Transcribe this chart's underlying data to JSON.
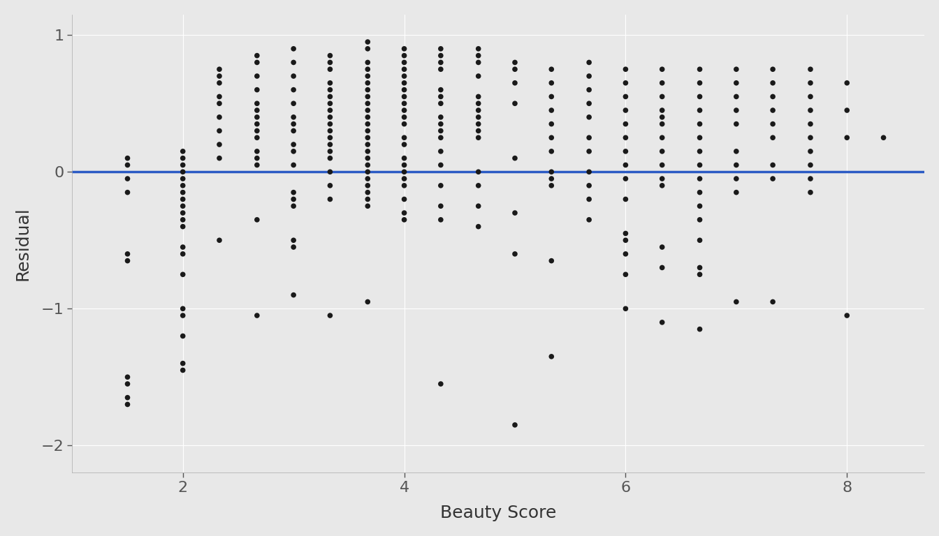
{
  "x": [
    1.5,
    1.5,
    1.5,
    1.5,
    1.5,
    1.5,
    1.5,
    1.5,
    1.5,
    1.5,
    2.0,
    2.0,
    2.0,
    2.0,
    2.0,
    2.0,
    2.0,
    2.0,
    2.0,
    2.0,
    2.0,
    2.0,
    2.0,
    2.0,
    2.0,
    2.0,
    2.0,
    2.0,
    2.0,
    2.0,
    2.33,
    2.33,
    2.33,
    2.33,
    2.33,
    2.33,
    2.33,
    2.33,
    2.33,
    2.33,
    2.67,
    2.67,
    2.67,
    2.67,
    2.67,
    2.67,
    2.67,
    2.67,
    2.67,
    2.67,
    2.67,
    2.67,
    2.67,
    2.67,
    2.67,
    3.0,
    3.0,
    3.0,
    3.0,
    3.0,
    3.0,
    3.0,
    3.0,
    3.0,
    3.0,
    3.0,
    3.0,
    3.0,
    3.0,
    3.0,
    3.0,
    3.0,
    3.33,
    3.33,
    3.33,
    3.33,
    3.33,
    3.33,
    3.33,
    3.33,
    3.33,
    3.33,
    3.33,
    3.33,
    3.33,
    3.33,
    3.33,
    3.33,
    3.33,
    3.33,
    3.33,
    3.67,
    3.67,
    3.67,
    3.67,
    3.67,
    3.67,
    3.67,
    3.67,
    3.67,
    3.67,
    3.67,
    3.67,
    3.67,
    3.67,
    3.67,
    3.67,
    3.67,
    3.67,
    3.67,
    3.67,
    3.67,
    3.67,
    3.67,
    3.67,
    3.67,
    4.0,
    4.0,
    4.0,
    4.0,
    4.0,
    4.0,
    4.0,
    4.0,
    4.0,
    4.0,
    4.0,
    4.0,
    4.0,
    4.0,
    4.0,
    4.0,
    4.0,
    4.0,
    4.0,
    4.0,
    4.0,
    4.0,
    4.33,
    4.33,
    4.33,
    4.33,
    4.33,
    4.33,
    4.33,
    4.33,
    4.33,
    4.33,
    4.33,
    4.33,
    4.33,
    4.33,
    4.33,
    4.33,
    4.33,
    4.67,
    4.67,
    4.67,
    4.67,
    4.67,
    4.67,
    4.67,
    4.67,
    4.67,
    4.67,
    4.67,
    4.67,
    4.67,
    4.67,
    4.67,
    5.0,
    5.0,
    5.0,
    5.0,
    5.0,
    5.0,
    5.0,
    5.0,
    5.33,
    5.33,
    5.33,
    5.33,
    5.33,
    5.33,
    5.33,
    5.33,
    5.33,
    5.33,
    5.33,
    5.33,
    5.67,
    5.67,
    5.67,
    5.67,
    5.67,
    5.67,
    5.67,
    5.67,
    5.67,
    5.67,
    5.67,
    6.0,
    6.0,
    6.0,
    6.0,
    6.0,
    6.0,
    6.0,
    6.0,
    6.0,
    6.0,
    6.0,
    6.0,
    6.0,
    6.0,
    6.0,
    6.33,
    6.33,
    6.33,
    6.33,
    6.33,
    6.33,
    6.33,
    6.33,
    6.33,
    6.33,
    6.33,
    6.33,
    6.33,
    6.33,
    6.67,
    6.67,
    6.67,
    6.67,
    6.67,
    6.67,
    6.67,
    6.67,
    6.67,
    6.67,
    6.67,
    6.67,
    6.67,
    6.67,
    6.67,
    6.67,
    7.0,
    7.0,
    7.0,
    7.0,
    7.0,
    7.0,
    7.0,
    7.0,
    7.0,
    7.0,
    7.33,
    7.33,
    7.33,
    7.33,
    7.33,
    7.33,
    7.33,
    7.33,
    7.33,
    7.67,
    7.67,
    7.67,
    7.67,
    7.67,
    7.67,
    7.67,
    7.67,
    7.67,
    7.67,
    8.0,
    8.0,
    8.0,
    8.0,
    8.33
  ],
  "y": [
    0.1,
    0.05,
    -0.05,
    -0.15,
    -0.6,
    -0.65,
    -1.5,
    -1.55,
    -1.65,
    -1.7,
    0.15,
    0.1,
    0.05,
    0.0,
    -0.05,
    -0.1,
    -0.15,
    -0.2,
    -0.25,
    -0.3,
    -0.35,
    -0.4,
    -0.55,
    -0.6,
    -0.75,
    -1.0,
    -1.05,
    -1.2,
    -1.4,
    -1.45,
    0.75,
    0.7,
    0.65,
    0.55,
    0.5,
    0.4,
    0.3,
    0.2,
    0.1,
    -0.5,
    0.85,
    0.8,
    0.7,
    0.6,
    0.5,
    0.45,
    0.4,
    0.35,
    0.3,
    0.25,
    0.15,
    0.1,
    0.05,
    -0.35,
    -1.05,
    0.9,
    0.8,
    0.7,
    0.6,
    0.5,
    0.4,
    0.35,
    0.3,
    0.2,
    0.15,
    0.05,
    -0.15,
    -0.2,
    -0.25,
    -0.5,
    -0.55,
    -0.9,
    0.85,
    0.8,
    0.75,
    0.65,
    0.6,
    0.55,
    0.5,
    0.45,
    0.4,
    0.35,
    0.3,
    0.25,
    0.2,
    0.15,
    0.1,
    0.0,
    -0.1,
    -0.2,
    -1.05,
    0.95,
    0.9,
    0.8,
    0.75,
    0.7,
    0.65,
    0.6,
    0.55,
    0.5,
    0.45,
    0.4,
    0.35,
    0.3,
    0.25,
    0.2,
    0.15,
    0.1,
    0.05,
    0.0,
    -0.05,
    -0.1,
    -0.15,
    -0.2,
    -0.25,
    -0.95,
    0.9,
    0.85,
    0.8,
    0.75,
    0.7,
    0.65,
    0.6,
    0.55,
    0.5,
    0.45,
    0.4,
    0.35,
    0.25,
    0.2,
    0.1,
    0.05,
    0.0,
    -0.05,
    -0.1,
    -0.2,
    -0.3,
    -0.35,
    0.9,
    0.85,
    0.8,
    0.75,
    0.6,
    0.55,
    0.5,
    0.4,
    0.35,
    0.3,
    0.25,
    0.15,
    0.05,
    -0.1,
    -0.25,
    -0.35,
    -1.55,
    0.9,
    0.85,
    0.8,
    0.7,
    0.55,
    0.5,
    0.45,
    0.4,
    0.35,
    0.3,
    0.25,
    0.0,
    -0.1,
    -0.25,
    -0.4,
    0.8,
    0.75,
    0.65,
    0.5,
    0.1,
    -0.3,
    -0.6,
    -1.85,
    0.75,
    0.65,
    0.55,
    0.45,
    0.35,
    0.25,
    0.15,
    0.0,
    -0.05,
    -0.1,
    -0.65,
    -1.35,
    0.8,
    0.7,
    0.6,
    0.5,
    0.4,
    0.25,
    0.15,
    0.0,
    -0.1,
    -0.2,
    -0.35,
    0.75,
    0.65,
    0.55,
    0.45,
    0.35,
    0.25,
    0.15,
    0.05,
    -0.05,
    -0.2,
    -0.45,
    -0.5,
    -0.6,
    -0.75,
    -1.0,
    0.75,
    0.65,
    0.55,
    0.45,
    0.4,
    0.35,
    0.25,
    0.15,
    0.05,
    -0.05,
    -0.1,
    -0.55,
    -0.7,
    -1.1,
    0.75,
    0.65,
    0.55,
    0.45,
    0.35,
    0.25,
    0.15,
    0.05,
    -0.05,
    -0.15,
    -0.25,
    -0.35,
    -0.5,
    -0.7,
    -0.75,
    -1.15,
    0.75,
    0.65,
    0.55,
    0.45,
    0.35,
    0.15,
    0.05,
    -0.05,
    -0.15,
    -0.95,
    0.75,
    0.65,
    0.55,
    0.45,
    0.35,
    0.25,
    0.05,
    -0.05,
    -0.95,
    0.75,
    0.65,
    0.55,
    0.45,
    0.35,
    0.25,
    0.15,
    0.05,
    -0.05,
    -0.15,
    0.65,
    0.45,
    0.25,
    -1.05,
    0.25
  ],
  "bg_color": "#e8e8e8",
  "dot_color": "#1a1a1a",
  "line_color": "#2b5bc4",
  "xlabel": "Beauty Score",
  "ylabel": "Residual",
  "xlim": [
    1.0,
    8.7
  ],
  "ylim": [
    -2.2,
    1.15
  ],
  "xticks": [
    2,
    4,
    6,
    8
  ],
  "yticks": [
    -2,
    -1,
    0,
    1
  ],
  "grid_color": "#ffffff",
  "title": "",
  "dot_size": 30,
  "line_width": 2.5
}
